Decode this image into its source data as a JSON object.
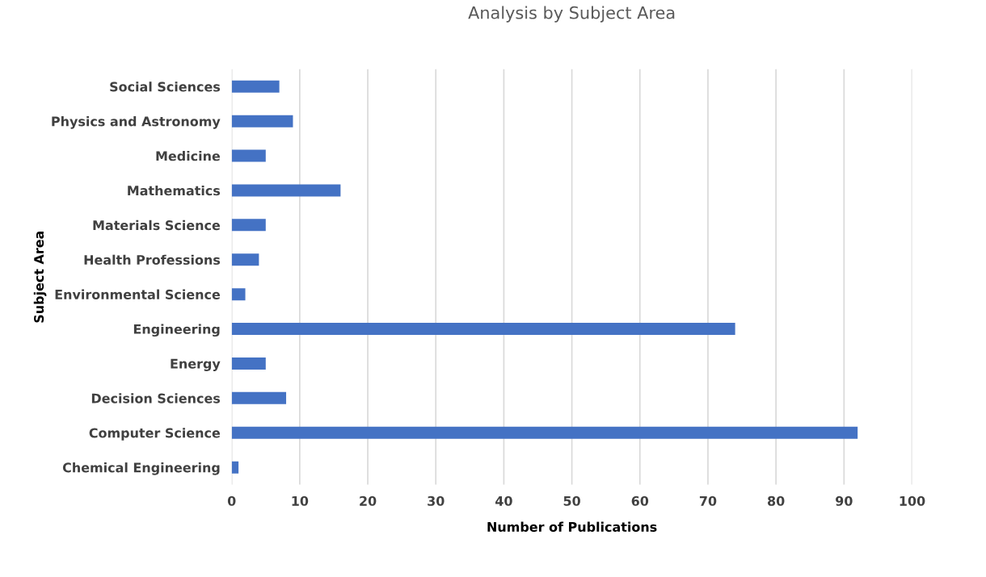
{
  "chart_data": {
    "type": "bar",
    "orientation": "horizontal",
    "title": "Analysis by Subject Area",
    "xlabel": "Number of Publications",
    "ylabel": "Subject Area",
    "categories": [
      "Social Sciences",
      "Physics and Astronomy",
      "Medicine",
      "Mathematics",
      "Materials Science",
      "Health Professions",
      "Environmental Science",
      "Engineering",
      "Energy",
      "Decision Sciences",
      "Computer Science",
      "Chemical Engineering"
    ],
    "values": [
      7,
      9,
      5,
      16,
      5,
      4,
      2,
      74,
      5,
      8,
      92,
      1
    ],
    "color": "#4472c4",
    "xlim": [
      0,
      100
    ],
    "xticks": [
      0,
      10,
      20,
      30,
      40,
      50,
      60,
      70,
      80,
      90,
      100
    ],
    "grid": "x",
    "legend": false
  }
}
